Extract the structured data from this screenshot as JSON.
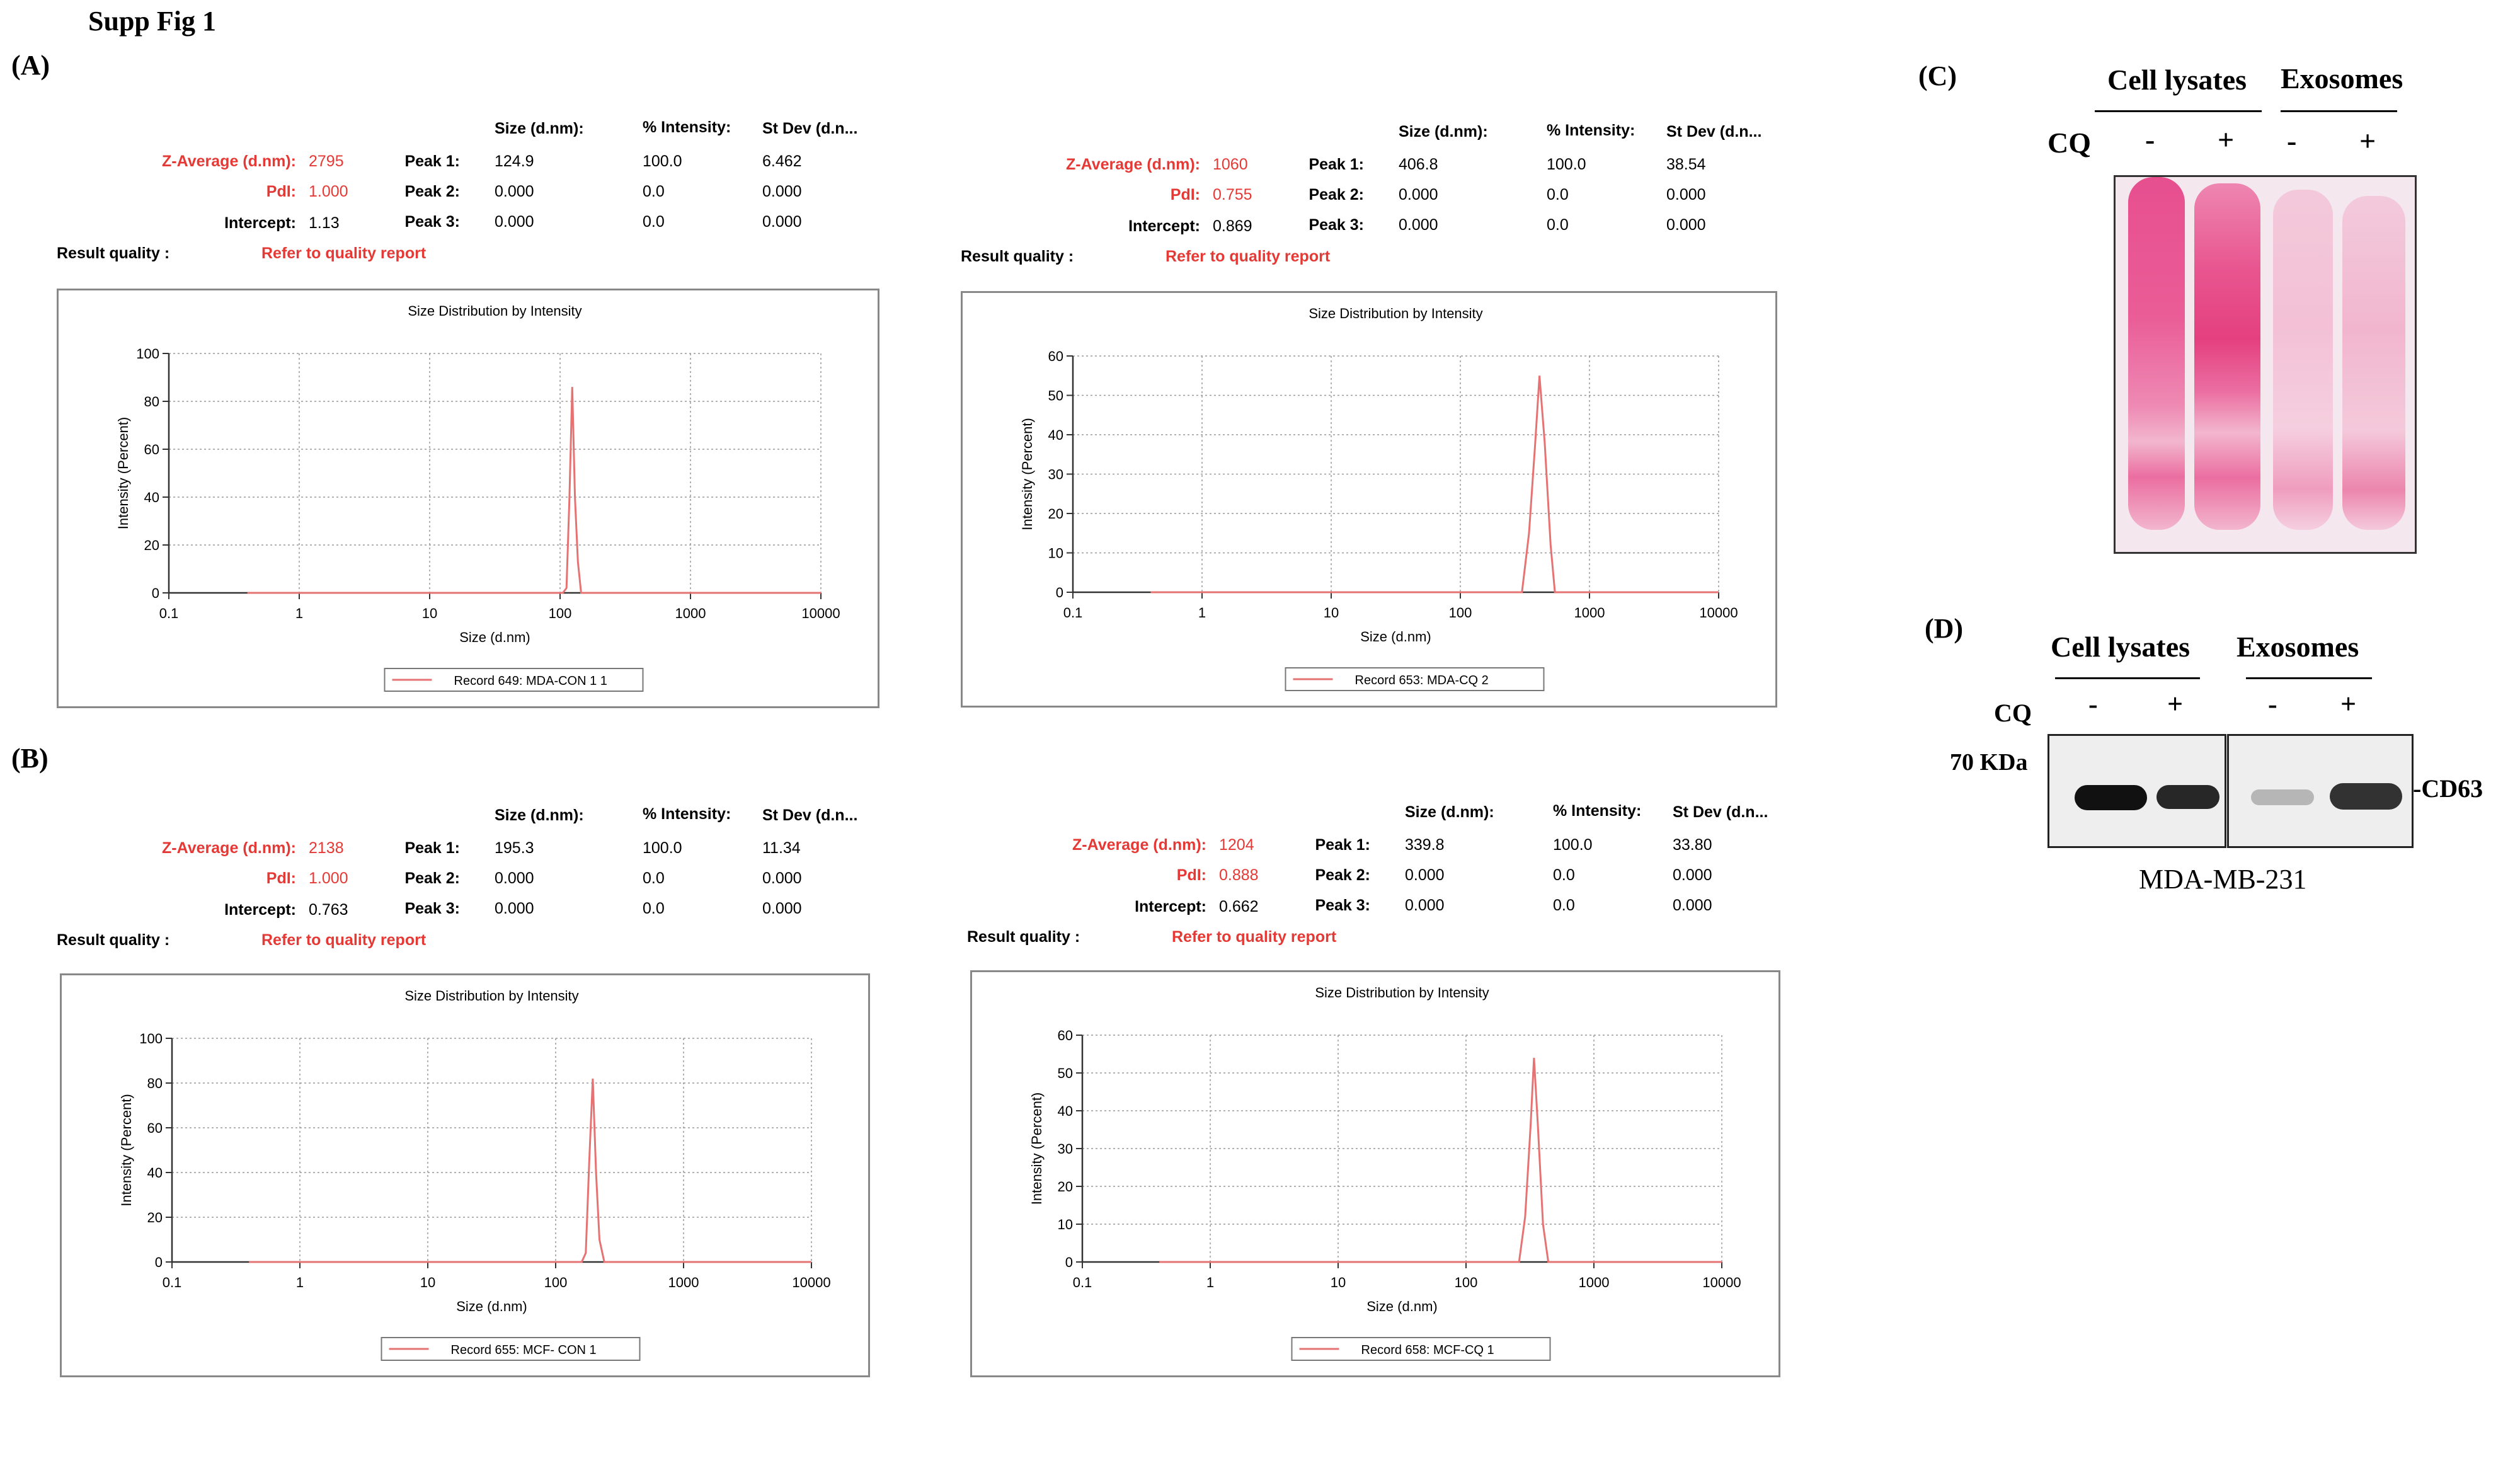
{
  "figure_title": "Supp Fig 1",
  "panel_labels": [
    "(A)",
    "(B)",
    "(C)",
    "(D)"
  ],
  "dls_header": {
    "size": "Size (d.nm):",
    "intensity": "% Intensity:",
    "stdev": "St Dev (d.n...",
    "z_average": "Z-Average (d.nm):",
    "pdi": "PdI:",
    "intercept": "Intercept:",
    "result_quality": "Result quality :",
    "quality_link": "Refer to quality report",
    "peak1": "Peak 1:",
    "peak2": "Peak 2:",
    "peak3": "Peak 3:"
  },
  "dls_results": [
    {
      "z_average": "2795",
      "pdi": "1.000",
      "intercept": "1.13",
      "peaks": [
        [
          "124.9",
          "100.0",
          "6.462"
        ],
        [
          "0.000",
          "0.0",
          "0.000"
        ],
        [
          "0.000",
          "0.0",
          "0.000"
        ]
      ]
    },
    {
      "z_average": "1060",
      "pdi": "0.755",
      "intercept": "0.869",
      "peaks": [
        [
          "406.8",
          "100.0",
          "38.54"
        ],
        [
          "0.000",
          "0.0",
          "0.000"
        ],
        [
          "0.000",
          "0.0",
          "0.000"
        ]
      ]
    },
    {
      "z_average": "2138",
      "pdi": "1.000",
      "intercept": "0.763",
      "peaks": [
        [
          "195.3",
          "100.0",
          "11.34"
        ],
        [
          "0.000",
          "0.0",
          "0.000"
        ],
        [
          "0.000",
          "0.0",
          "0.000"
        ]
      ]
    },
    {
      "z_average": "1204",
      "pdi": "0.888",
      "intercept": "0.662",
      "peaks": [
        [
          "339.8",
          "100.0",
          "33.80"
        ],
        [
          "0.000",
          "0.0",
          "0.000"
        ],
        [
          "0.000",
          "0.0",
          "0.000"
        ]
      ]
    }
  ],
  "chart_data": [
    {
      "type": "line",
      "title": "Size Distribution by Intensity",
      "xlabel": "Size (d.nm)",
      "ylabel": "Intensity (Percent)",
      "x_scale": "log",
      "xlim": [
        0.1,
        10000
      ],
      "ylim": [
        0,
        100
      ],
      "y_ticks": [
        0,
        20,
        40,
        60,
        80,
        100
      ],
      "x_ticks": [
        "0.1",
        "1",
        "10",
        "100",
        "1000",
        "10000"
      ],
      "grid": true,
      "color": "#e57373",
      "series": [
        {
          "name": "Record 649: MDA-CON 1 1",
          "x": [
            0.4,
            105,
            112,
            118,
            124,
            130,
            137,
            145,
            10000
          ],
          "y": [
            0,
            0,
            2,
            40,
            86,
            40,
            13,
            0,
            0
          ]
        }
      ]
    },
    {
      "type": "line",
      "title": "Size Distribution by Intensity",
      "xlabel": "Size (d.nm)",
      "ylabel": "Intensity (Percent)",
      "x_scale": "log",
      "xlim": [
        0.1,
        10000
      ],
      "ylim": [
        0,
        60
      ],
      "y_ticks": [
        0,
        10,
        20,
        30,
        40,
        50,
        60
      ],
      "x_ticks": [
        "0.1",
        "1",
        "10",
        "100",
        "1000",
        "10000"
      ],
      "grid": true,
      "color": "#e57373",
      "series": [
        {
          "name": "Record 653: MDA-CQ  2",
          "x": [
            0.4,
            300,
            340,
            380,
            410,
            450,
            500,
            540,
            10000
          ],
          "y": [
            0,
            0,
            15,
            38,
            55,
            38,
            12,
            0,
            0
          ]
        }
      ]
    },
    {
      "type": "line",
      "title": "Size Distribution by Intensity",
      "xlabel": "Size (d.nm)",
      "ylabel": "Intensity (Percent)",
      "x_scale": "log",
      "xlim": [
        0.1,
        10000
      ],
      "ylim": [
        0,
        100
      ],
      "y_ticks": [
        0,
        20,
        40,
        60,
        80,
        100
      ],
      "x_ticks": [
        "0.1",
        "1",
        "10",
        "100",
        "1000",
        "10000"
      ],
      "grid": true,
      "color": "#e57373",
      "series": [
        {
          "name": "Record 655: MCF- CON 1",
          "x": [
            0.4,
            160,
            172,
            183,
            195,
            207,
            220,
            240,
            10000
          ],
          "y": [
            0,
            0,
            4,
            45,
            82,
            40,
            10,
            0,
            0
          ]
        }
      ]
    },
    {
      "type": "line",
      "title": "Size Distribution by Intensity",
      "xlabel": "Size (d.nm)",
      "ylabel": "Intensity (Percent)",
      "x_scale": "log",
      "xlim": [
        0.1,
        10000
      ],
      "ylim": [
        0,
        60
      ],
      "y_ticks": [
        0,
        10,
        20,
        30,
        40,
        50,
        60
      ],
      "x_ticks": [
        "0.1",
        "1",
        "10",
        "100",
        "1000",
        "10000"
      ],
      "grid": true,
      "color": "#e57373",
      "series": [
        {
          "name": "Record 658: MCF-CQ 1",
          "x": [
            0.4,
            260,
            290,
            320,
            340,
            365,
            400,
            440,
            10000
          ],
          "y": [
            0,
            0,
            12,
            36,
            54,
            36,
            10,
            0,
            0
          ]
        }
      ]
    }
  ],
  "panel_c": {
    "group1": "Cell lysates",
    "group2": "Exosomes",
    "treatment": "CQ",
    "lanes": [
      "-",
      "+",
      "-",
      "+"
    ]
  },
  "panel_d": {
    "group1": "Cell lysates",
    "group2": "Exosomes",
    "treatment": "CQ",
    "lanes": [
      "-",
      "+",
      "-",
      "+"
    ],
    "marker": "70 KDa",
    "protein": "-CD63",
    "cell_line": "MDA-MB-231"
  }
}
